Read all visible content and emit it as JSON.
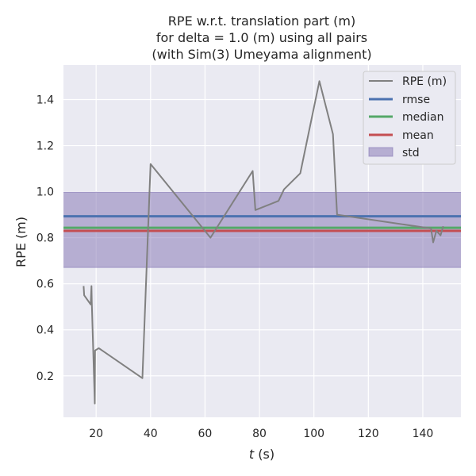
{
  "chart_data": {
    "type": "line",
    "title_lines": [
      "RPE w.r.t. translation part (m)",
      "for delta = 1.0 (m) using all pairs",
      "(with Sim(3) Umeyama alignment)"
    ],
    "xlabel_italic": "t",
    "xlabel_rest": " (s)",
    "ylabel": "RPE (m)",
    "xlim": [
      8,
      154
    ],
    "ylim": [
      0.02,
      1.55
    ],
    "xticks": [
      20,
      40,
      60,
      80,
      100,
      120,
      140
    ],
    "yticks": [
      0.2,
      0.4,
      0.6,
      0.8,
      1.0,
      1.2,
      1.4
    ],
    "xtick_labels": [
      "20",
      "40",
      "60",
      "80",
      "100",
      "120",
      "140"
    ],
    "ytick_labels": [
      "0.2",
      "0.4",
      "0.6",
      "0.8",
      "1.0",
      "1.2",
      "1.4"
    ],
    "grid": true,
    "legend_position": "top-right",
    "series": [
      {
        "name": "RPE (m)",
        "color": "#808080",
        "x": [
          15.4,
          15.6,
          18.0,
          18.3,
          18.4,
          19.5,
          19.6,
          21.0,
          37.0,
          40.0,
          62.0,
          77.5,
          78.5,
          87.0,
          89.0,
          95.0,
          102.0,
          107.0,
          108.5,
          143.0,
          143.8,
          145.0,
          146.5,
          147.5
        ],
        "y": [
          0.59,
          0.55,
          0.51,
          0.59,
          0.52,
          0.08,
          0.31,
          0.32,
          0.19,
          1.12,
          0.8,
          1.09,
          0.92,
          0.96,
          1.01,
          1.08,
          1.48,
          1.25,
          0.9,
          0.84,
          0.78,
          0.83,
          0.81,
          0.85
        ]
      }
    ],
    "stats": {
      "rmse": 0.893,
      "median": 0.843,
      "mean": 0.83,
      "std_band": [
        0.671,
        0.998
      ]
    },
    "legend": {
      "rpe_label": "RPE (m)",
      "rmse_label": "rmse",
      "median_label": "median",
      "mean_label": "mean",
      "std_label": "std"
    },
    "colors": {
      "plot_bg": "#eaeaf2",
      "grid": "#ffffff",
      "rpe": "#808080",
      "rmse": "#4c72b0",
      "median": "#55a868",
      "mean": "#c44e52",
      "std_fill": "#8172b2"
    }
  }
}
